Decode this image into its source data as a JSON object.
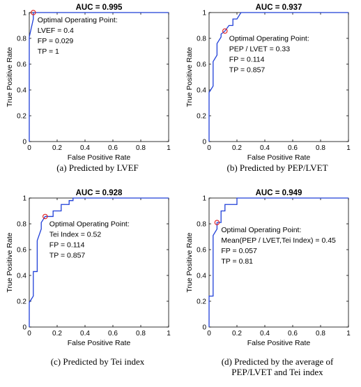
{
  "chart_data": [
    {
      "type": "line",
      "title": "AUC = 0.995",
      "xlabel": "False Positive Rate",
      "ylabel": "True Positive Rate",
      "xlim": [
        0,
        1
      ],
      "ylim": [
        0,
        1
      ],
      "xticks": [
        "0",
        "0.2",
        "0.4",
        "0.6",
        "0.8",
        "1"
      ],
      "yticks": [
        "0",
        "0.2",
        "0.4",
        "0.6",
        "0.8",
        "1"
      ],
      "series": [
        {
          "x": [
            0,
            0,
            0.029,
            0.029,
            1
          ],
          "y": [
            0,
            0.81,
            0.95,
            1,
            1
          ],
          "color": "#1f3fd8"
        }
      ],
      "optimal_point": {
        "x": 0.029,
        "y": 1
      },
      "annotation": [
        "Optimal Operating Point:",
        "LVEF = 0.4",
        "FP = 0.029",
        "TP = 1"
      ],
      "caption": [
        "(a) Predicted by LVEF"
      ]
    },
    {
      "type": "line",
      "title": "AUC = 0.937",
      "xlabel": "False Positive Rate",
      "ylabel": "True Positive Rate",
      "xlim": [
        0,
        1
      ],
      "ylim": [
        0,
        1
      ],
      "xticks": [
        "0",
        "0.2",
        "0.4",
        "0.6",
        "0.8",
        "1"
      ],
      "yticks": [
        "0",
        "0.2",
        "0.4",
        "0.6",
        "0.8",
        "1"
      ],
      "series": [
        {
          "x": [
            0,
            0,
            0.029,
            0.029,
            0.057,
            0.057,
            0.086,
            0.086,
            0.114,
            0.114,
            0.143,
            0.143,
            0.171,
            0.171,
            0.2,
            0.2,
            0.229,
            0.229,
            1
          ],
          "y": [
            0,
            0.38,
            0.43,
            0.62,
            0.67,
            0.76,
            0.81,
            0.833,
            0.857,
            0.857,
            0.9,
            0.9,
            0.9,
            0.95,
            0.95,
            0.95,
            1,
            1,
            1
          ],
          "color": "#1f3fd8"
        }
      ],
      "optimal_point": {
        "x": 0.114,
        "y": 0.857
      },
      "annotation": [
        "Optimal Operating Point:",
        "PEP / LVET = 0.33",
        "FP = 0.114",
        "TP = 0.857"
      ],
      "caption": [
        "(b) Predicted by PEP/LVET"
      ]
    },
    {
      "type": "line",
      "title": "AUC = 0.928",
      "xlabel": "False Positive Rate",
      "ylabel": "True Positive Rate",
      "xlim": [
        0,
        1
      ],
      "ylim": [
        0,
        1
      ],
      "xticks": [
        "0",
        "0.2",
        "0.4",
        "0.6",
        "0.8",
        "1"
      ],
      "yticks": [
        "0",
        "0.2",
        "0.4",
        "0.6",
        "0.8",
        "1"
      ],
      "series": [
        {
          "x": [
            0,
            0,
            0.029,
            0.029,
            0.057,
            0.057,
            0.086,
            0.086,
            0.114,
            0.114,
            0.171,
            0.171,
            0.229,
            0.229,
            0.286,
            0.286,
            0.314,
            0.314,
            1
          ],
          "y": [
            0,
            0.19,
            0.24,
            0.43,
            0.43,
            0.67,
            0.76,
            0.81,
            0.857,
            0.857,
            0.857,
            0.9,
            0.9,
            0.95,
            0.95,
            0.98,
            0.98,
            1,
            1
          ],
          "color": "#1f3fd8"
        }
      ],
      "optimal_point": {
        "x": 0.114,
        "y": 0.857
      },
      "annotation": [
        "Optimal Operating Point:",
        "Tei Index = 0.52",
        "FP = 0.114",
        "TP = 0.857"
      ],
      "caption": [
        "(c) Predicted by Tei index"
      ]
    },
    {
      "type": "line",
      "title": "AUC = 0.949",
      "xlabel": "False Positive Rate",
      "ylabel": "True Positive Rate",
      "xlim": [
        0,
        1
      ],
      "ylim": [
        0,
        1
      ],
      "xticks": [
        "0",
        "0.2",
        "0.4",
        "0.6",
        "0.8",
        "1"
      ],
      "yticks": [
        "0",
        "0.2",
        "0.4",
        "0.6",
        "0.8",
        "1"
      ],
      "series": [
        {
          "x": [
            0,
            0,
            0.029,
            0.029,
            0.057,
            0.057,
            0.086,
            0.086,
            0.114,
            0.114,
            0.2,
            0.2,
            1
          ],
          "y": [
            0,
            0.24,
            0.24,
            0.71,
            0.76,
            0.81,
            0.81,
            0.9,
            0.9,
            0.95,
            0.95,
            1,
            1
          ],
          "color": "#1f3fd8"
        }
      ],
      "optimal_point": {
        "x": 0.057,
        "y": 0.81
      },
      "annotation": [
        "Optimal Operating Point:",
        "Mean(PEP / LVET,Tei Index) = 0.45",
        "FP = 0.057",
        "TP = 0.81"
      ],
      "caption": [
        "(d) Predicted by the average of",
        "PEP/LVET and Tei index"
      ]
    }
  ]
}
